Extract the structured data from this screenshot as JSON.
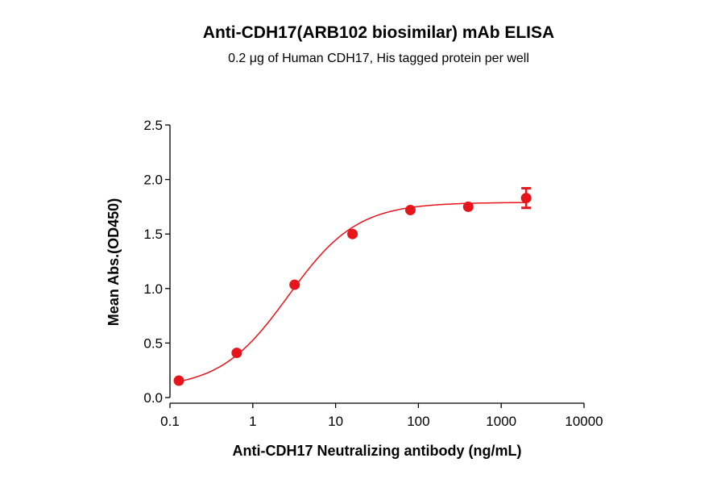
{
  "chart_data": {
    "type": "scatter",
    "title": "Anti-CDH17(ARB102 biosimilar) mAb ELISA",
    "subtitle": "0.2 μg of Human CDH17, His tagged protein per well",
    "xlabel": "Anti-CDH17 Neutralizing antibody (ng/mL)",
    "ylabel": "Mean Abs.(OD450)",
    "xscale": "log",
    "xlim": [
      0.1,
      10000
    ],
    "ylim": [
      0,
      2.5
    ],
    "xticks": [
      "0.1",
      "1",
      "10",
      "100",
      "1000",
      "10000"
    ],
    "xtick_values": [
      0.1,
      1,
      10,
      100,
      1000,
      10000
    ],
    "yticks": [
      "0.0",
      "0.5",
      "1.0",
      "1.5",
      "2.0",
      "2.5"
    ],
    "ytick_values": [
      0,
      0.5,
      1.0,
      1.5,
      2.0,
      2.5
    ],
    "grid": false,
    "color": "#e8141c",
    "series": [
      {
        "name": "Anti-CDH17 Neutralizing antibody",
        "x": [
          0.128,
          0.64,
          3.2,
          16,
          80,
          400,
          2000
        ],
        "y": [
          0.155,
          0.41,
          1.035,
          1.5,
          1.72,
          1.75,
          1.83
        ],
        "error": [
          0,
          0,
          0,
          0,
          0,
          0,
          0.09
        ]
      }
    ],
    "fit": {
      "model": "4PL",
      "bottom": 0.08,
      "top": 1.79,
      "ec50": 2.7,
      "hill": 1.05
    }
  }
}
